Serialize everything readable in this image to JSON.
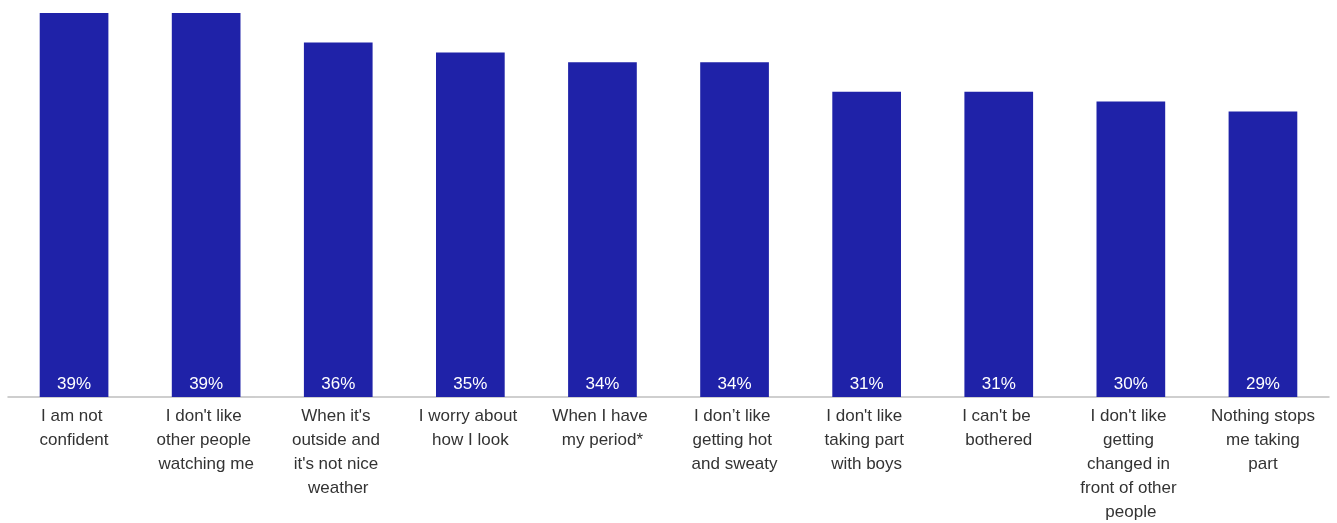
{
  "chart_data": {
    "type": "bar",
    "categories": [
      "I am not confident",
      "I don't like other people watching me",
      "When it's outside and it's not nice weather",
      "I worry about how I look",
      "When I have my period*",
      "I don’t like getting hot and sweaty",
      "I don't like taking part with boys",
      "I can't be bothered",
      "I don't like getting changed in front of other people",
      "Nothing stops me taking part"
    ],
    "values": [
      39,
      39,
      36,
      35,
      34,
      34,
      31,
      31,
      30,
      29
    ],
    "value_labels": [
      "39%",
      "39%",
      "36%",
      "35%",
      "34%",
      "34%",
      "31%",
      "31%",
      "30%",
      "29%"
    ],
    "color": "#1f22a8"
  }
}
